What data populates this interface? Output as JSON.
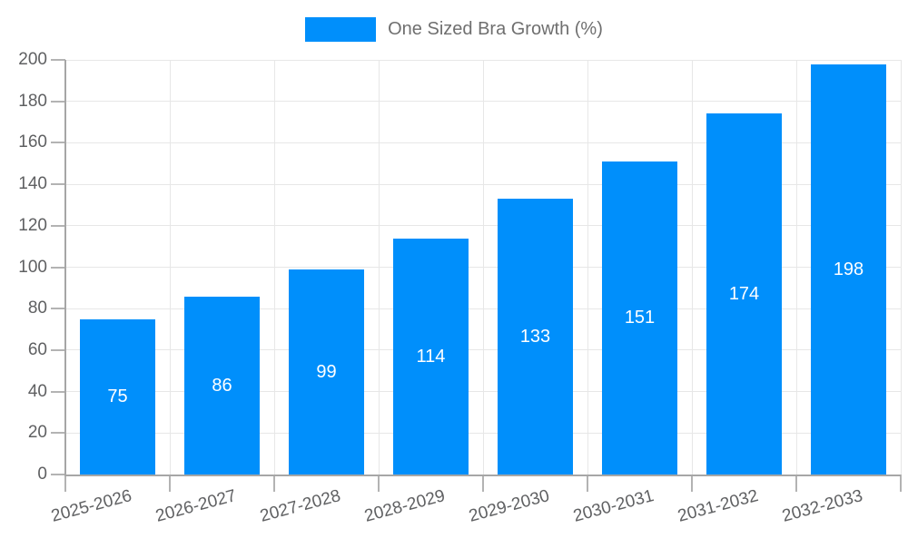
{
  "chart_data": {
    "type": "bar",
    "title": "One Sized Bra Growth (%)",
    "categories": [
      "2025-2026",
      "2026-2027",
      "2027-2028",
      "2028-2029",
      "2029-2030",
      "2030-2031",
      "2031-2032",
      "2032-2033"
    ],
    "series": [
      {
        "name": "One Sized Bra Growth (%)",
        "values": [
          75,
          86,
          99,
          114,
          133,
          151,
          174,
          198
        ]
      }
    ],
    "values": [
      75,
      86,
      99,
      114,
      133,
      151,
      174,
      198
    ],
    "xlabel": "",
    "ylabel": "",
    "ylim": [
      0,
      200
    ],
    "yticks": [
      0,
      20,
      40,
      60,
      80,
      100,
      120,
      140,
      160,
      180,
      200
    ],
    "grid": true,
    "legend_position": "top",
    "value_label_position": "inside-center"
  },
  "colors": {
    "bar": "#008FFB",
    "value_label": "#ffffff",
    "grid_line": "#e7e7e7",
    "axis_line": "#a6a6a6",
    "tick_mark": "#b3b3b3",
    "axis_label": "#5f6062",
    "legend_label": "#6f6f6f",
    "background": "#ffffff"
  }
}
